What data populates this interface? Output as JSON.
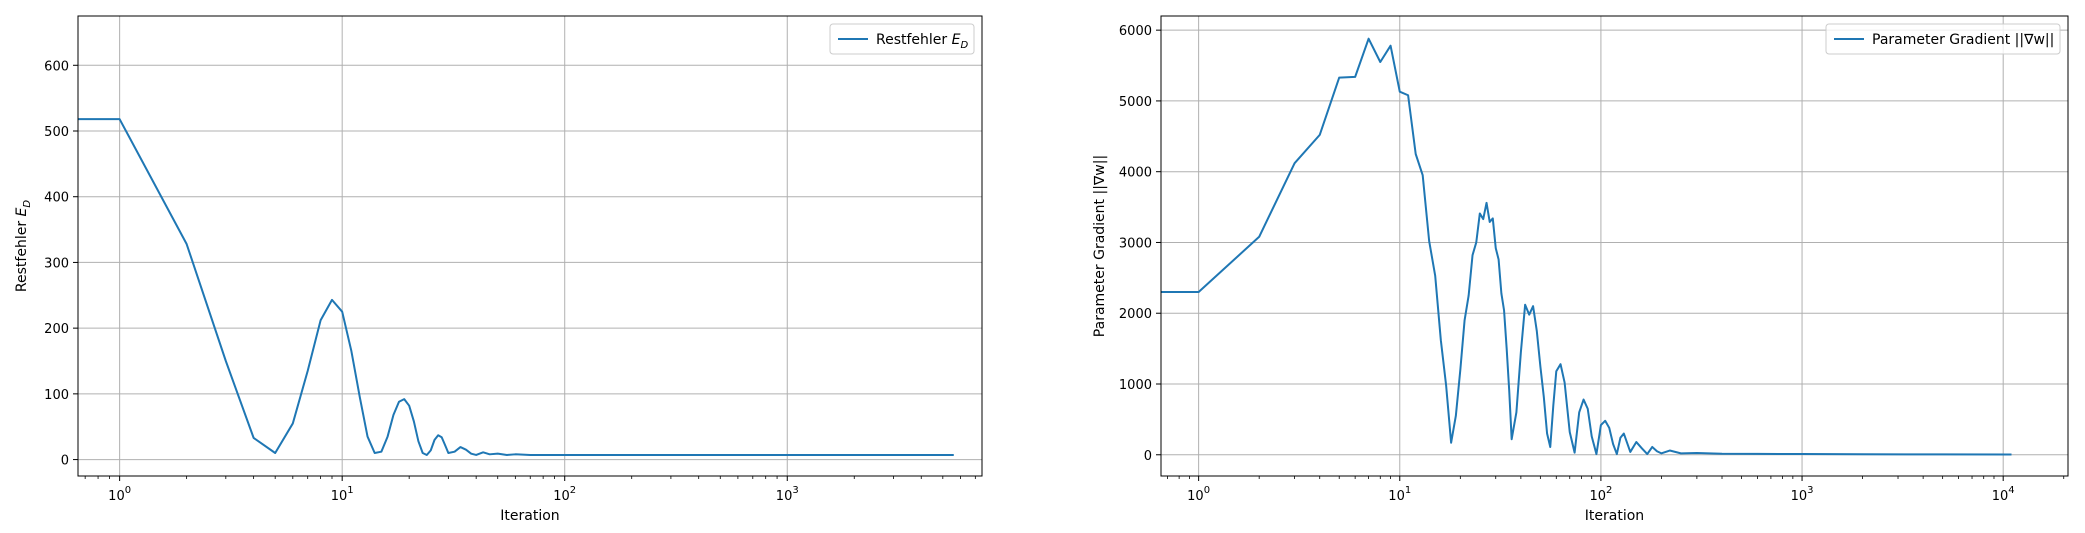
{
  "chart_data": [
    {
      "type": "line",
      "xscale": "log",
      "xlabel": "Iteration",
      "ylabel": "Restfehler E_D",
      "xlim": [
        0.65,
        7500
      ],
      "ylim": [
        -25,
        675
      ],
      "x_ticks": [
        {
          "value": 1,
          "base": "10",
          "exp": "0"
        },
        {
          "value": 10,
          "base": "10",
          "exp": "1"
        },
        {
          "value": 100,
          "base": "10",
          "exp": "2"
        },
        {
          "value": 1000,
          "base": "10",
          "exp": "3"
        }
      ],
      "y_ticks": [
        0,
        100,
        200,
        300,
        400,
        500,
        600
      ],
      "grid": true,
      "legend": "top-right",
      "series": [
        {
          "name": "Restfehler E_D",
          "color": "#1f77b4",
          "x": [
            0.65,
            1,
            2,
            3,
            4,
            5,
            6,
            7,
            8,
            9,
            10,
            11,
            12,
            13,
            14,
            15,
            16,
            17,
            18,
            19,
            20,
            21,
            22,
            23,
            24,
            25,
            26,
            27,
            28,
            29,
            30,
            32,
            34,
            36,
            38,
            40,
            43,
            46,
            50,
            55,
            60,
            70,
            80,
            100,
            150,
            200,
            500,
            1000,
            3000,
            5600
          ],
          "y": [
            518,
            518,
            328,
            150,
            33,
            10,
            55,
            135,
            212,
            243,
            225,
            165,
            95,
            35,
            10,
            12,
            35,
            68,
            88,
            92,
            82,
            58,
            28,
            10,
            7,
            14,
            30,
            37,
            34,
            22,
            10,
            12,
            19,
            15,
            9,
            7,
            11,
            8,
            9,
            7,
            8,
            7,
            7,
            7,
            7,
            7,
            7,
            7,
            7,
            7
          ]
        }
      ]
    },
    {
      "type": "line",
      "xscale": "log",
      "xlabel": "Iteration",
      "ylabel": "Parameter Gradient ||∇w||",
      "xlim": [
        0.65,
        21000
      ],
      "ylim": [
        -300,
        6200
      ],
      "x_ticks": [
        {
          "value": 1,
          "base": "10",
          "exp": "0"
        },
        {
          "value": 10,
          "base": "10",
          "exp": "1"
        },
        {
          "value": 100,
          "base": "10",
          "exp": "2"
        },
        {
          "value": 1000,
          "base": "10",
          "exp": "3"
        },
        {
          "value": 10000,
          "base": "10",
          "exp": "4"
        }
      ],
      "y_ticks": [
        0,
        1000,
        2000,
        3000,
        4000,
        5000,
        6000
      ],
      "grid": true,
      "legend": "top-right",
      "series": [
        {
          "name": "Parameter Gradient ||∇w||",
          "color": "#1f77b4",
          "x": [
            0.65,
            1,
            2,
            3,
            4,
            5,
            6,
            7,
            8,
            9,
            10,
            11,
            12,
            13,
            14,
            15,
            16,
            17,
            18,
            19,
            20,
            21,
            22,
            23,
            24,
            25,
            26,
            27,
            28,
            29,
            30,
            31,
            32,
            33,
            34,
            35,
            36,
            38,
            40,
            42,
            44,
            46,
            48,
            50,
            52,
            54,
            56,
            58,
            60,
            63,
            66,
            70,
            74,
            78,
            82,
            86,
            90,
            95,
            100,
            105,
            110,
            115,
            120,
            125,
            130,
            140,
            150,
            160,
            170,
            180,
            190,
            200,
            220,
            250,
            300,
            400,
            600,
            1000,
            2000,
            5000,
            11000
          ],
          "y": [
            2300,
            2300,
            3080,
            4120,
            4520,
            5330,
            5340,
            5880,
            5550,
            5780,
            5130,
            5080,
            4250,
            3950,
            3020,
            2530,
            1620,
            980,
            170,
            550,
            1200,
            1900,
            2250,
            2820,
            3000,
            3410,
            3330,
            3560,
            3290,
            3340,
            2920,
            2760,
            2280,
            2040,
            1500,
            910,
            220,
            600,
            1450,
            2120,
            1980,
            2100,
            1750,
            1250,
            820,
            300,
            110,
            700,
            1180,
            1280,
            1020,
            320,
            30,
            600,
            780,
            650,
            260,
            10,
            420,
            480,
            380,
            150,
            10,
            240,
            300,
            40,
            180,
            90,
            10,
            110,
            50,
            20,
            60,
            20,
            25,
            15,
            12,
            10,
            8,
            5,
            3
          ]
        }
      ]
    }
  ]
}
